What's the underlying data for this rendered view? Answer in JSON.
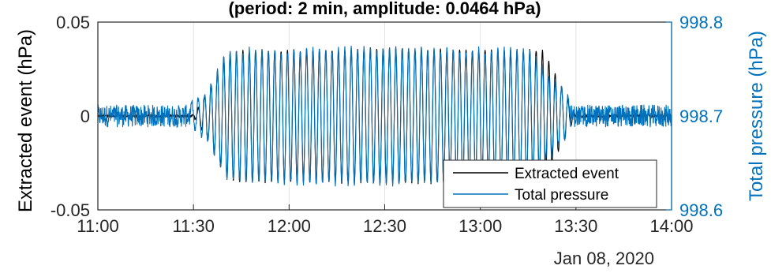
{
  "chart_data": {
    "type": "line",
    "title": "(period: 2 min, amplitude: 0.0464 hPa)",
    "xlabel": "",
    "date_label": "Jan 08, 2020",
    "x_tick_labels": [
      "11:00",
      "11:30",
      "12:00",
      "12:30",
      "13:00",
      "13:30",
      "14:00"
    ],
    "xlim": [
      "11:00",
      "14:00"
    ],
    "grid": "vertical",
    "legend_position": "bottom-right",
    "left_axis": {
      "label": "Extracted event (hPa)",
      "ylim": [
        -0.05,
        0.05
      ],
      "tick_labels": [
        "0.05",
        "0",
        "-0.05"
      ],
      "color": "#000000"
    },
    "right_axis": {
      "label": "Total pressure (hPa)",
      "ylim": [
        998.6,
        998.8
      ],
      "tick_labels": [
        "998.8",
        "998.7",
        "998.6"
      ],
      "color": "#0072BD"
    },
    "event": {
      "period_min": 2,
      "amplitude_hPa": 0.0464,
      "start": "11:35",
      "end": "13:20"
    },
    "series": [
      {
        "name": "Extracted event",
        "axis": "left",
        "color": "#000000",
        "x": [
          "11:00",
          "11:30",
          "11:35",
          "11:40",
          "11:45",
          "12:00",
          "12:30",
          "13:00",
          "13:15",
          "13:20",
          "13:30",
          "14:00"
        ],
        "envelope_max": [
          0.0,
          0.0,
          0.015,
          0.033,
          0.035,
          0.035,
          0.036,
          0.035,
          0.035,
          0.035,
          0.0,
          0.0
        ]
      },
      {
        "name": "Total pressure",
        "axis": "right",
        "color": "#0072BD",
        "x": [
          "11:00",
          "11:30",
          "11:35",
          "11:40",
          "11:45",
          "12:00",
          "12:30",
          "13:00",
          "13:15",
          "13:20",
          "13:30",
          "14:00"
        ],
        "baseline": 998.7,
        "envelope_max": [
          998.713,
          998.714,
          998.73,
          998.767,
          998.77,
          998.77,
          998.772,
          998.77,
          998.77,
          998.75,
          998.712,
          998.713
        ]
      }
    ]
  }
}
